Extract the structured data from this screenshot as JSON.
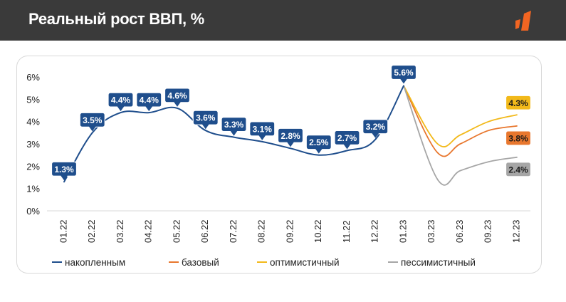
{
  "header": {
    "title": "Реальный рост ВВП, %"
  },
  "colors": {
    "accumulated": "#1f4e8c",
    "base": "#e8772e",
    "optimistic": "#f2b91a",
    "pessimistic": "#a6a6a6",
    "header_bg": "#3a3a3a",
    "logo": "#f26522"
  },
  "chart_data": {
    "type": "line",
    "title": "Реальный рост ВВП, %",
    "xlabel": "",
    "ylabel": "",
    "ylim": [
      0,
      6
    ],
    "yticks": [
      "0%",
      "1%",
      "2%",
      "3%",
      "4%",
      "5%",
      "6%"
    ],
    "categories": [
      "01.22",
      "02.22",
      "03.22",
      "04.22",
      "05.22",
      "06.22",
      "07.22",
      "08.22",
      "09.22",
      "10.22",
      "11.22",
      "12.22",
      "01.23",
      "03.23",
      "06.23",
      "09.23",
      "12.23"
    ],
    "series": [
      {
        "name": "накопленным",
        "key": "accumulated",
        "x": [
          0,
          1,
          2,
          3,
          4,
          5,
          6,
          7,
          8,
          9,
          10,
          11,
          12
        ],
        "values": [
          1.3,
          3.5,
          4.4,
          4.4,
          4.6,
          3.6,
          3.3,
          3.1,
          2.8,
          2.5,
          2.7,
          3.2,
          5.6
        ],
        "labels": [
          "1.3%",
          "3.5%",
          "4.4%",
          "4.4%",
          "4.6%",
          "3.6%",
          "3.3%",
          "3.1%",
          "2.8%",
          "2.5%",
          "2.7%",
          "3.2%",
          "5.6%"
        ]
      },
      {
        "name": "базовый",
        "key": "base",
        "x": [
          12,
          13.2,
          14,
          15,
          16
        ],
        "values": [
          5.6,
          2.6,
          3.0,
          3.6,
          3.8
        ],
        "end_label": "3.8%"
      },
      {
        "name": "оптимистичный",
        "key": "optimistic",
        "x": [
          12,
          13.2,
          14,
          15,
          16
        ],
        "values": [
          5.6,
          3.0,
          3.4,
          4.0,
          4.3
        ],
        "end_label": "4.3%"
      },
      {
        "name": "пессимистичный",
        "key": "pessimistic",
        "x": [
          12,
          13.2,
          14,
          15,
          16
        ],
        "values": [
          5.6,
          1.4,
          1.8,
          2.2,
          2.4
        ],
        "end_label": "2.4%"
      }
    ],
    "legend": [
      "накопленным",
      "базовый",
      "оптимистичный",
      "пессимистичный"
    ],
    "legend_position": "bottom"
  }
}
